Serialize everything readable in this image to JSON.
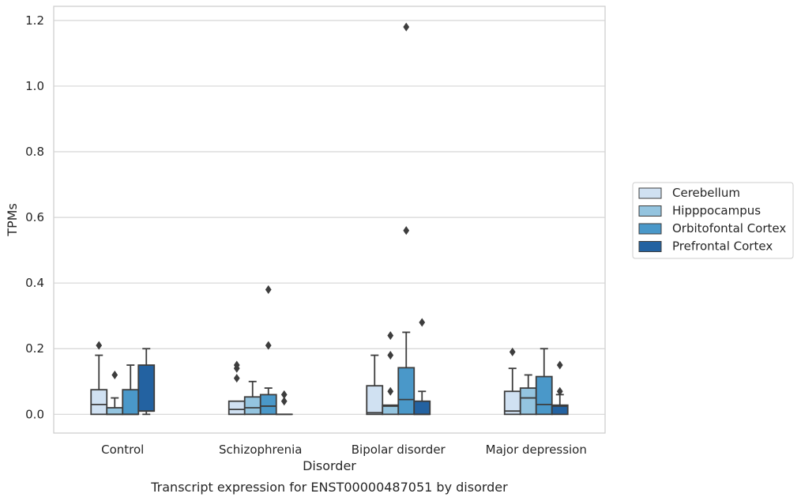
{
  "caption": "Transcript expression for ENST00000487051 by disorder",
  "colors": {
    "Cerebellum": "#d0e1f2",
    "Hipppocampus": "#94c4df",
    "Orbitofontal Cortex": "#4a98c9",
    "Prefrontal Cortex": "#2362a1",
    "edge": "#3d3d3d",
    "grid": "#d5d5d5"
  },
  "chart_data": {
    "type": "boxplot",
    "xlabel": "Disorder",
    "ylabel": "TPMs",
    "ylim": [
      -0.057,
      1.243
    ],
    "yticks": [
      0.0,
      0.2,
      0.4,
      0.6,
      0.8,
      1.0,
      1.2
    ],
    "ytick_labels": [
      "0.0",
      "0.2",
      "0.4",
      "0.6",
      "0.8",
      "1.0",
      "1.2"
    ],
    "grid": true,
    "legend_position": "center-right",
    "categories": [
      "Control",
      "Schizophrenia",
      "Bipolar disorder",
      "Major depression"
    ],
    "series": [
      {
        "name": "Cerebellum",
        "boxes": [
          {
            "q1": 0.0,
            "median": 0.03,
            "q3": 0.075,
            "whisker_low": 0.0,
            "whisker_high": 0.18,
            "outliers": [
              0.21
            ]
          },
          {
            "q1": 0.0,
            "median": 0.015,
            "q3": 0.04,
            "whisker_low": 0.0,
            "whisker_high": 0.04,
            "outliers": [
              0.11,
              0.14,
              0.15
            ]
          },
          {
            "q1": 0.0,
            "median": 0.005,
            "q3": 0.087,
            "whisker_low": 0.0,
            "whisker_high": 0.18,
            "outliers": []
          },
          {
            "q1": 0.0,
            "median": 0.01,
            "q3": 0.07,
            "whisker_low": 0.0,
            "whisker_high": 0.14,
            "outliers": [
              0.19
            ]
          }
        ]
      },
      {
        "name": "Hipppocampus",
        "boxes": [
          {
            "q1": 0.0,
            "median": 0.0,
            "q3": 0.02,
            "whisker_low": 0.0,
            "whisker_high": 0.05,
            "outliers": [
              0.12
            ]
          },
          {
            "q1": 0.0,
            "median": 0.02,
            "q3": 0.053,
            "whisker_low": 0.0,
            "whisker_high": 0.1,
            "outliers": []
          },
          {
            "q1": 0.0,
            "median": 0.025,
            "q3": 0.028,
            "whisker_low": 0.0,
            "whisker_high": 0.028,
            "outliers": [
              0.07,
              0.18,
              0.24
            ]
          },
          {
            "q1": 0.0,
            "median": 0.05,
            "q3": 0.08,
            "whisker_low": 0.0,
            "whisker_high": 0.12,
            "outliers": []
          }
        ]
      },
      {
        "name": "Orbitofontal Cortex",
        "boxes": [
          {
            "q1": 0.0,
            "median": 0.0,
            "q3": 0.075,
            "whisker_low": 0.0,
            "whisker_high": 0.15,
            "outliers": []
          },
          {
            "q1": 0.0,
            "median": 0.025,
            "q3": 0.06,
            "whisker_low": 0.0,
            "whisker_high": 0.08,
            "outliers": [
              0.21,
              0.38
            ]
          },
          {
            "q1": 0.0,
            "median": 0.045,
            "q3": 0.142,
            "whisker_low": 0.0,
            "whisker_high": 0.25,
            "outliers": [
              0.56,
              1.18
            ]
          },
          {
            "q1": 0.0,
            "median": 0.03,
            "q3": 0.115,
            "whisker_low": 0.0,
            "whisker_high": 0.2,
            "outliers": []
          }
        ]
      },
      {
        "name": "Prefrontal Cortex",
        "boxes": [
          {
            "q1": 0.01,
            "median": 0.01,
            "q3": 0.15,
            "whisker_low": 0.0,
            "whisker_high": 0.2,
            "outliers": []
          },
          {
            "q1": 0.0,
            "median": 0.0,
            "q3": 0.0,
            "whisker_low": 0.0,
            "whisker_high": 0.0,
            "outliers": [
              0.04,
              0.06
            ]
          },
          {
            "q1": 0.0,
            "median": 0.0,
            "q3": 0.04,
            "whisker_low": 0.0,
            "whisker_high": 0.07,
            "outliers": [
              0.28
            ]
          },
          {
            "q1": 0.0,
            "median": 0.025,
            "q3": 0.028,
            "whisker_low": 0.0,
            "whisker_high": 0.06,
            "outliers": [
              0.07,
              0.15
            ]
          }
        ]
      }
    ]
  }
}
